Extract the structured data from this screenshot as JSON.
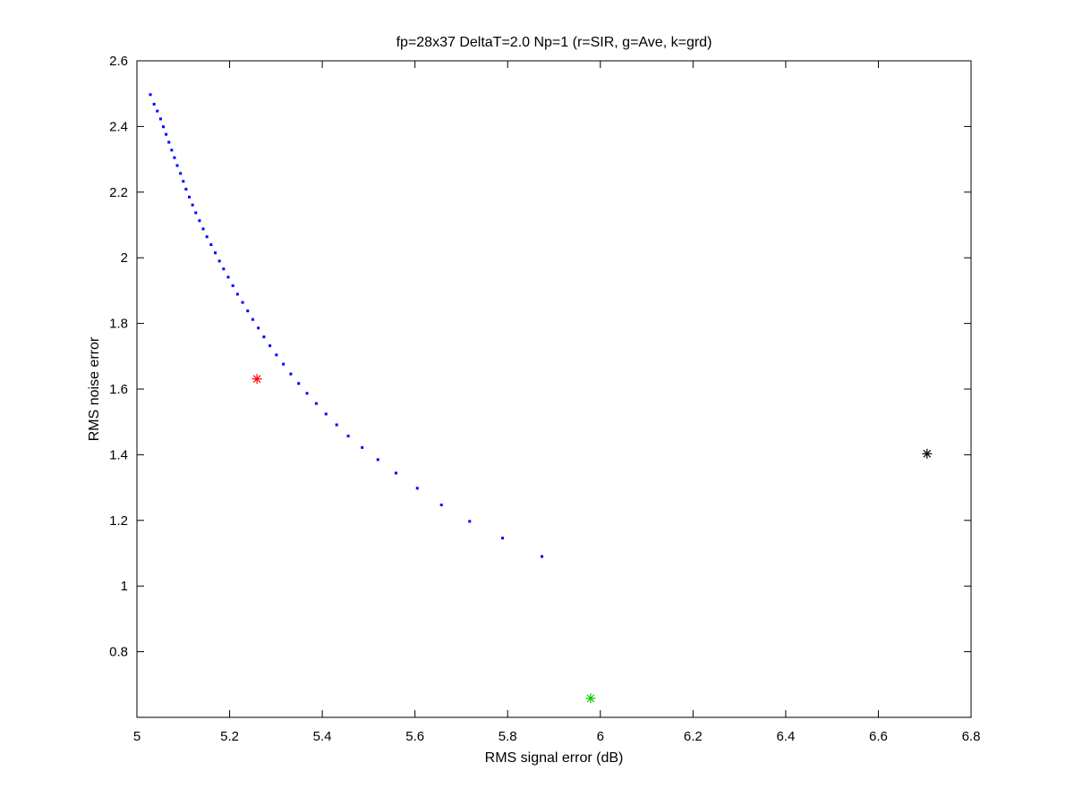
{
  "chart_data": {
    "type": "scatter",
    "title": "fp=28x37 DeltaT=2.0 Np=1 (r=SIR, g=Ave, k=grd)",
    "xlabel": "RMS signal error (dB)",
    "ylabel": "RMS noise error",
    "xlim": [
      5,
      6.8
    ],
    "ylim": [
      0.6,
      2.6
    ],
    "xticks": [
      5,
      5.2,
      5.4,
      5.6,
      5.8,
      6,
      6.2,
      6.4,
      6.6,
      6.8
    ],
    "xtick_labels": [
      "5",
      "5.2",
      "5.4",
      "5.6",
      "5.8",
      "6",
      "6.2",
      "6.4",
      "6.6",
      "6.8"
    ],
    "yticks": [
      0.8,
      1,
      1.2,
      1.4,
      1.6,
      1.8,
      2,
      2.2,
      2.4,
      2.6
    ],
    "ytick_labels": [
      "0.8",
      "1",
      "1.2",
      "1.4",
      "1.6",
      "1.8",
      "2",
      "2.2",
      "2.4",
      "2.6"
    ],
    "grid": false,
    "series": [
      {
        "marker": "dot",
        "color": "#0000ff",
        "x": [
          5.029,
          5.037,
          5.044,
          5.051,
          5.057,
          5.063,
          5.069,
          5.075,
          5.081,
          5.087,
          5.094,
          5.1,
          5.106,
          5.113,
          5.12,
          5.127,
          5.135,
          5.143,
          5.151,
          5.16,
          5.169,
          5.178,
          5.187,
          5.197,
          5.207,
          5.217,
          5.228,
          5.239,
          5.25,
          5.262,
          5.274,
          5.287,
          5.301,
          5.316,
          5.332,
          5.349,
          5.367,
          5.387,
          5.408,
          5.431,
          5.456,
          5.486,
          5.52,
          5.559,
          5.605,
          5.657,
          5.718,
          5.789,
          5.874
        ],
        "y": [
          2.497,
          2.468,
          2.447,
          2.423,
          2.399,
          2.376,
          2.352,
          2.328,
          2.305,
          2.281,
          2.257,
          2.233,
          2.209,
          2.185,
          2.161,
          2.137,
          2.113,
          2.088,
          2.064,
          2.04,
          2.015,
          1.99,
          1.966,
          1.941,
          1.915,
          1.889,
          1.864,
          1.838,
          1.812,
          1.786,
          1.759,
          1.732,
          1.704,
          1.676,
          1.646,
          1.617,
          1.587,
          1.556,
          1.524,
          1.491,
          1.457,
          1.422,
          1.385,
          1.344,
          1.298,
          1.247,
          1.197,
          1.146,
          1.09
        ]
      },
      {
        "marker": "star",
        "color": "#ff0000",
        "x": [
          5.259
        ],
        "y": [
          1.631
        ]
      },
      {
        "marker": "star",
        "color": "#00cc00",
        "x": [
          5.979
        ],
        "y": [
          0.658
        ]
      },
      {
        "marker": "star",
        "color": "#000000",
        "x": [
          6.705
        ],
        "y": [
          1.403
        ]
      }
    ]
  }
}
